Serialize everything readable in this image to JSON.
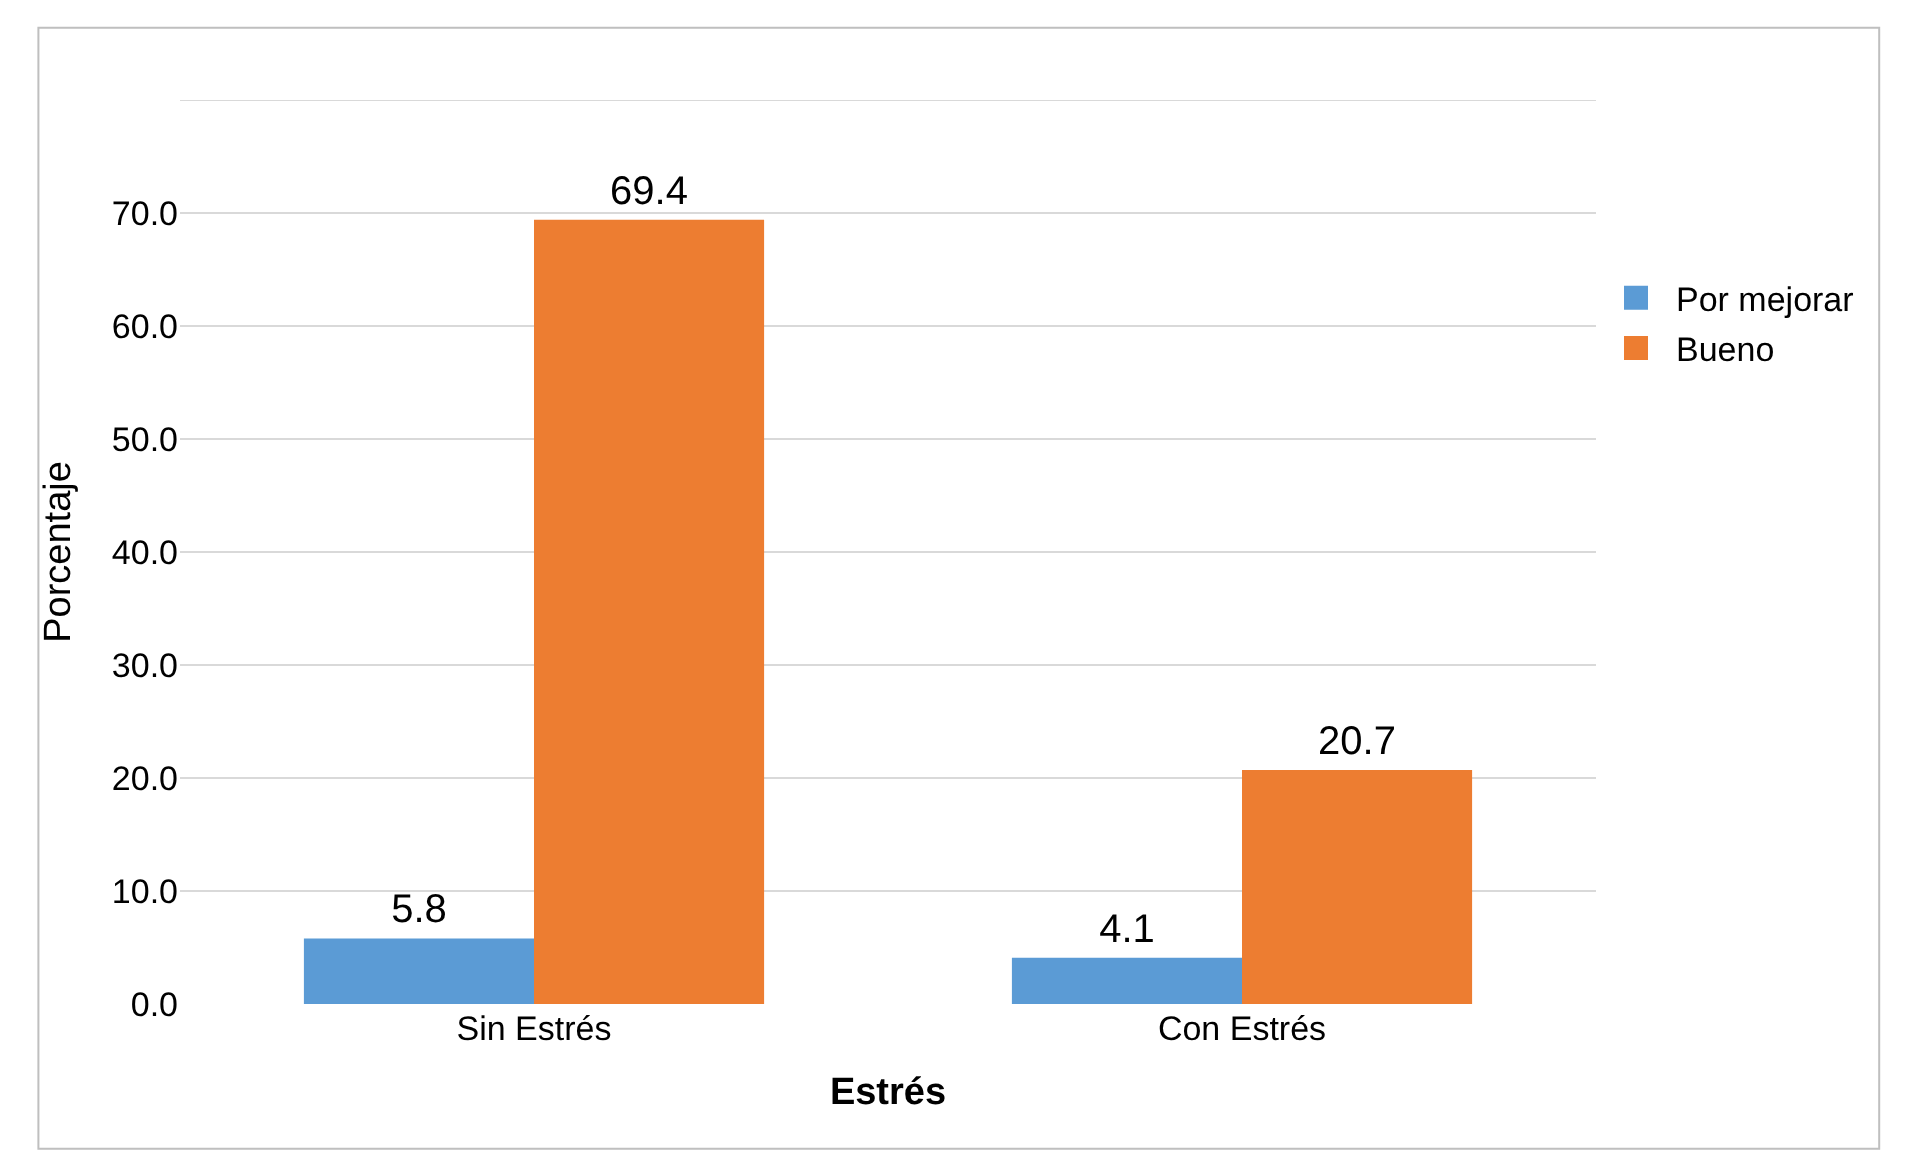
{
  "chart_data": {
    "type": "bar",
    "xlabel": "Estrés",
    "ylabel": "Porcentaje",
    "categories": [
      "Sin Estrés",
      "Con Estrés"
    ],
    "series": [
      {
        "name": "Por mejorar",
        "color": "#5b9bd5",
        "values": [
          5.8,
          4.1
        ]
      },
      {
        "name": "Bueno",
        "color": "#ed7d31",
        "values": [
          69.4,
          20.7
        ]
      }
    ],
    "ylim": [
      0,
      80
    ],
    "yticks": [
      {
        "value": 0,
        "label": "0.0"
      },
      {
        "value": 10,
        "label": "10.0"
      },
      {
        "value": 20,
        "label": "20.0"
      },
      {
        "value": 30,
        "label": "30.0"
      },
      {
        "value": 40,
        "label": "40.0"
      },
      {
        "value": 50,
        "label": "50.0"
      },
      {
        "value": 60,
        "label": "60.0"
      },
      {
        "value": 70,
        "label": "70.0"
      },
      {
        "value": 80,
        "label": null
      }
    ],
    "grid": "y",
    "legend": "right",
    "data_labels": true
  }
}
